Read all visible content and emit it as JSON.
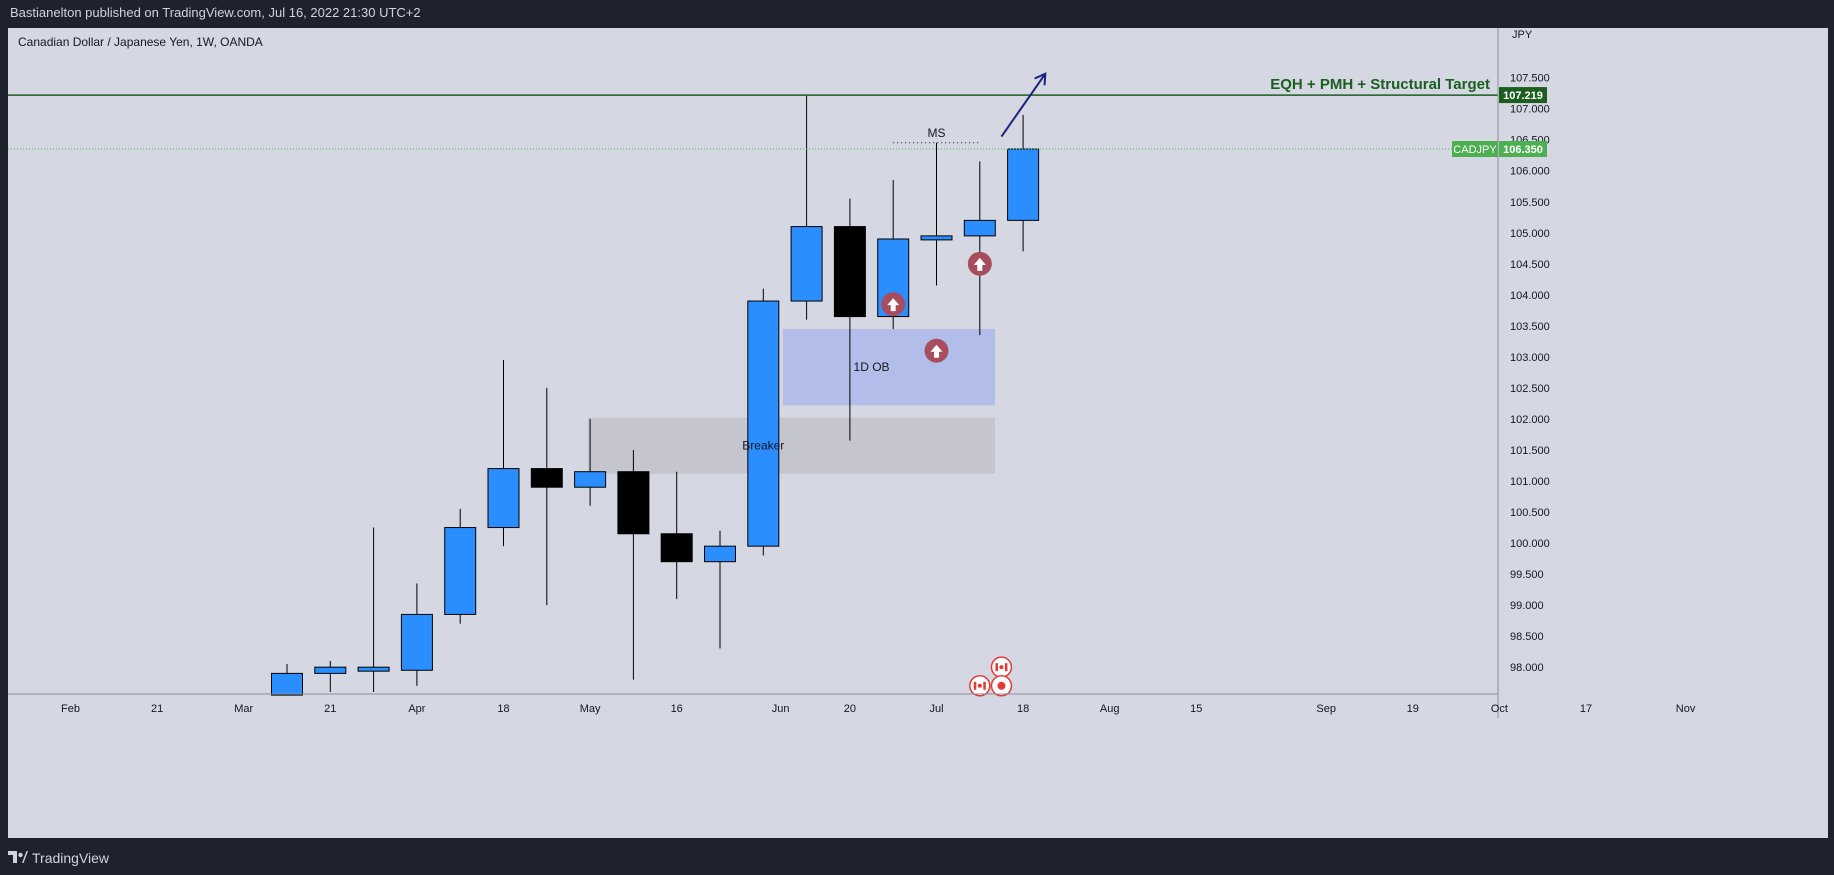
{
  "header": {
    "published": "Bastianelton published on TradingView.com, Jul 16, 2022 21:30 UTC+2"
  },
  "footer": {
    "brand": "TradingView"
  },
  "chart_data": {
    "type": "candlestick",
    "symbol_label": "Canadian Dollar / Japanese Yen, 1W, OANDA",
    "currency": "JPY",
    "ylim": [
      97.6,
      108.3
    ],
    "y_ticks": [
      "98.000",
      "98.500",
      "99.000",
      "99.500",
      "100.000",
      "100.500",
      "101.000",
      "101.500",
      "102.000",
      "102.500",
      "103.000",
      "103.500",
      "104.000",
      "104.500",
      "105.000",
      "105.500",
      "106.000",
      "106.500",
      "107.000",
      "107.500"
    ],
    "x_ticks": [
      {
        "label": "Feb",
        "t": -4
      },
      {
        "label": "21",
        "t": -2
      },
      {
        "label": "Mar",
        "t": 0
      },
      {
        "label": "21",
        "t": 2
      },
      {
        "label": "Apr",
        "t": 4
      },
      {
        "label": "18",
        "t": 6
      },
      {
        "label": "May",
        "t": 8
      },
      {
        "label": "16",
        "t": 10
      },
      {
        "label": "Jun",
        "t": 12.4
      },
      {
        "label": "20",
        "t": 14
      },
      {
        "label": "Jul",
        "t": 16
      },
      {
        "label": "18",
        "t": 18
      },
      {
        "label": "Aug",
        "t": 20
      },
      {
        "label": "15",
        "t": 22
      },
      {
        "label": "Sep",
        "t": 25
      },
      {
        "label": "19",
        "t": 27
      },
      {
        "label": "Oct",
        "t": 29
      },
      {
        "label": "17",
        "t": 31
      },
      {
        "label": "Nov",
        "t": 33.3
      }
    ],
    "candles": [
      {
        "date": "2022-03-14",
        "open": 97.55,
        "high": 98.05,
        "low": 97.55,
        "close": 97.9
      },
      {
        "date": "2022-03-21",
        "open": 97.9,
        "high": 98.1,
        "low": 97.6,
        "close": 98.0
      },
      {
        "date": "2022-03-28",
        "open": 97.95,
        "high": 100.25,
        "low": 97.6,
        "close": 98.0
      },
      {
        "date": "2022-04-04",
        "open": 97.95,
        "high": 99.35,
        "low": 97.7,
        "close": 98.85
      },
      {
        "date": "2022-04-11",
        "open": 98.85,
        "high": 100.55,
        "low": 98.7,
        "close": 100.25
      },
      {
        "date": "2022-04-18",
        "open": 100.25,
        "high": 102.95,
        "low": 99.95,
        "close": 101.2
      },
      {
        "date": "2022-04-25",
        "open": 101.2,
        "high": 102.5,
        "low": 99.0,
        "close": 100.9
      },
      {
        "date": "2022-05-02",
        "open": 100.9,
        "high": 102.0,
        "low": 100.6,
        "close": 101.15
      },
      {
        "date": "2022-05-09",
        "open": 101.15,
        "high": 101.5,
        "low": 97.8,
        "close": 100.15
      },
      {
        "date": "2022-05-16",
        "open": 100.15,
        "high": 101.15,
        "low": 99.1,
        "close": 99.7
      },
      {
        "date": "2022-05-23",
        "open": 99.7,
        "high": 100.2,
        "low": 98.3,
        "close": 99.95
      },
      {
        "date": "2022-05-30",
        "open": 99.95,
        "high": 104.1,
        "low": 99.8,
        "close": 103.9
      },
      {
        "date": "2022-06-06",
        "open": 103.9,
        "high": 107.22,
        "low": 103.6,
        "close": 105.1
      },
      {
        "date": "2022-06-13",
        "open": 105.1,
        "high": 105.55,
        "low": 101.65,
        "close": 103.65
      },
      {
        "date": "2022-06-20",
        "open": 103.65,
        "high": 105.85,
        "low": 103.45,
        "close": 104.9
      },
      {
        "date": "2022-06-27",
        "open": 104.9,
        "high": 106.45,
        "low": 104.15,
        "close": 104.95
      },
      {
        "date": "2022-07-04",
        "open": 104.95,
        "high": 106.15,
        "low": 103.35,
        "close": 105.2
      },
      {
        "date": "2022-07-11",
        "open": 105.2,
        "high": 106.9,
        "low": 104.7,
        "close": 106.35
      }
    ],
    "up_color": "#2b8eff",
    "down_color": "#000000",
    "levels": [
      {
        "name": "eqh-line",
        "value": 107.219,
        "label": "EQH + PMH + Structural Target",
        "tag": "107.219",
        "color": "#1b5e20"
      },
      {
        "name": "last-price-line",
        "value": 106.35,
        "tag": "106.350",
        "symbol": "CADJPY",
        "color": "#4caf50"
      }
    ],
    "zones": [
      {
        "name": "breaker-zone",
        "label": "Breaker",
        "from_t": 7.95,
        "to_t": 17.35,
        "low": 101.12,
        "high": 102.02,
        "color": "#c2c3cd"
      },
      {
        "name": "ob-zone",
        "label": "1D OB",
        "from_t": 12.45,
        "to_t": 17.35,
        "low": 102.22,
        "high": 103.45,
        "color": "#aebbea"
      }
    ],
    "ms": {
      "label": "MS",
      "from_t": 15,
      "to_t": 17,
      "value": 106.45
    },
    "arrow": {
      "from_t": 17.5,
      "from_v": 106.55,
      "to_t": 18.5,
      "to_v": 107.55,
      "color": "#1a237e"
    },
    "up_markers": [
      {
        "t": 15,
        "v": 103.85
      },
      {
        "t": 16,
        "v": 103.1
      },
      {
        "t": 17,
        "v": 104.5
      }
    ],
    "event_markers": [
      {
        "t": 17,
        "v": 97.7,
        "kind": "ca-flag"
      },
      {
        "t": 17.5,
        "v": 98.0,
        "kind": "ca-flag"
      },
      {
        "t": 17.5,
        "v": 97.7,
        "kind": "dot"
      }
    ]
  }
}
